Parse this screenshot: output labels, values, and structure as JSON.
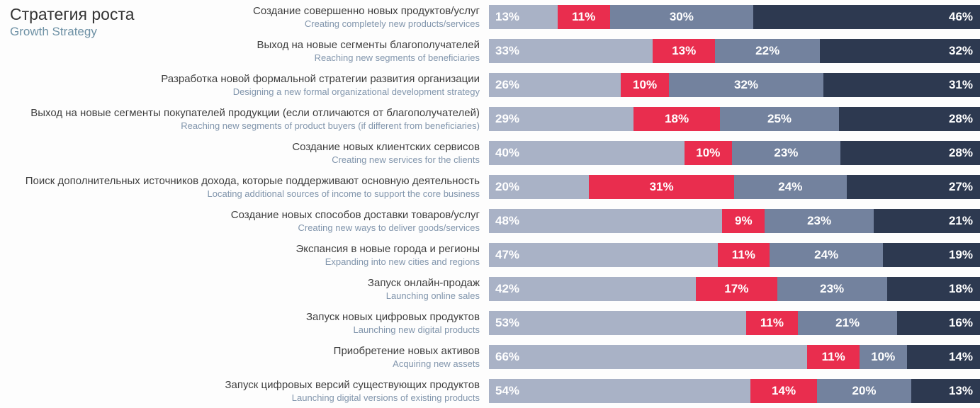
{
  "title": {
    "ru": "Стратегия роста",
    "en": "Growth Strategy"
  },
  "chart_data": {
    "type": "bar",
    "orientation": "horizontal",
    "stacked": true,
    "unit": "%",
    "colors": [
      "#a9b2c6",
      "#e92d4e",
      "#73829e",
      "#2d3950"
    ],
    "rows": [
      {
        "label_ru": "Создание совершенно новых продуктов/услуг",
        "label_en": "Creating completely new products/services",
        "values": [
          13,
          11,
          30,
          46
        ]
      },
      {
        "label_ru": "Выход на новые сегменты благополучателей",
        "label_en": "Reaching new segments of beneficiaries",
        "values": [
          33,
          13,
          22,
          32
        ]
      },
      {
        "label_ru": "Разработка новой формальной стратегии развития организации",
        "label_en": "Designing a new formal organizational development strategy",
        "values": [
          26,
          10,
          32,
          31
        ]
      },
      {
        "label_ru": "Выход на новые сегменты покупателей продукции (если отличаются от благополучателей)",
        "label_en": "Reaching new segments of product buyers (if different from beneficiaries)",
        "values": [
          29,
          18,
          25,
          28
        ]
      },
      {
        "label_ru": "Создание новых клиентских сервисов",
        "label_en": "Creating new services for the clients",
        "values": [
          40,
          10,
          23,
          28
        ]
      },
      {
        "label_ru": "Поиск дополнительных источников дохода, которые поддерживают основную деятельность",
        "label_en": "Locating additional sources of income to support the core business",
        "values": [
          20,
          31,
          24,
          27
        ]
      },
      {
        "label_ru": "Создание новых способов доставки товаров/услуг",
        "label_en": "Creating new ways to deliver goods/services",
        "values": [
          48,
          9,
          23,
          21
        ]
      },
      {
        "label_ru": "Экспансия в новые города и регионы",
        "label_en": "Expanding into new cities and regions",
        "values": [
          47,
          11,
          24,
          19
        ]
      },
      {
        "label_ru": "Запуск онлайн-продаж",
        "label_en": "Launching online sales",
        "values": [
          42,
          17,
          23,
          18
        ]
      },
      {
        "label_ru": "Запуск новых цифровых продуктов",
        "label_en": "Launching new digital products",
        "values": [
          53,
          11,
          21,
          16
        ]
      },
      {
        "label_ru": "Приобретение новых активов",
        "label_en": "Acquiring new assets",
        "values": [
          66,
          11,
          10,
          14
        ]
      },
      {
        "label_ru": "Запуск цифровых версий существующих продуктов",
        "label_en": "Launching digital versions of existing products",
        "values": [
          54,
          14,
          20,
          13
        ]
      }
    ]
  }
}
